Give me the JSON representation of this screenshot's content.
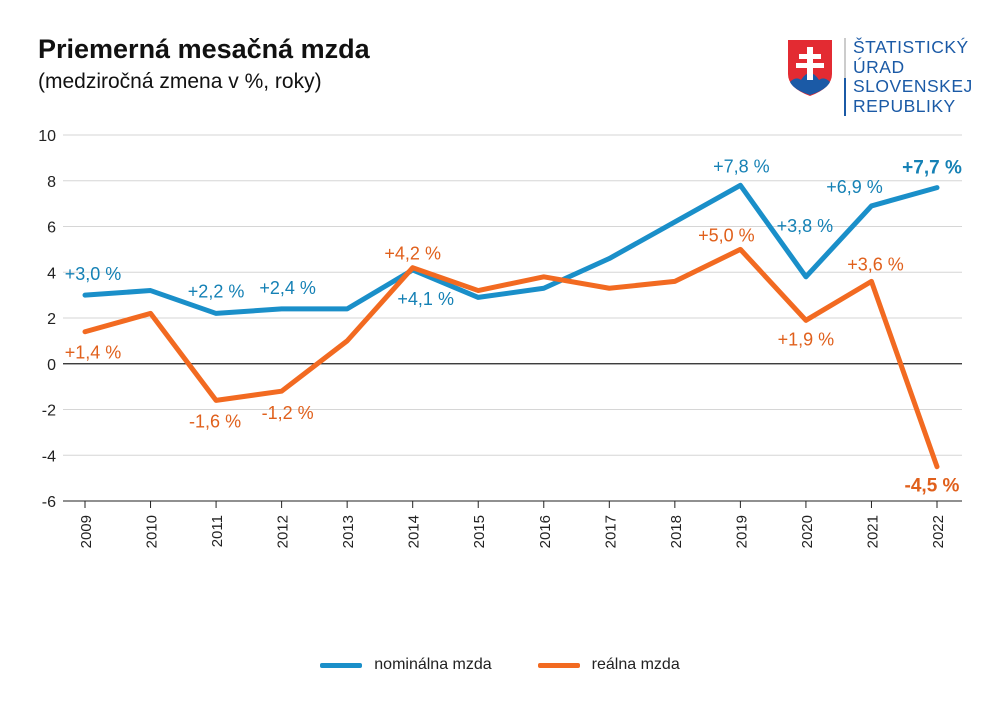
{
  "header": {
    "title": "Priemerná mesačná mzda",
    "subtitle": "(medziročná zmena v %, roky)"
  },
  "logo": {
    "lines": [
      "ŠTATISTICKÝ",
      "ÚRAD",
      "SLOVENSKEJ",
      "REPUBLIKY"
    ],
    "icon": "slovak-coat-of-arms-icon"
  },
  "chart_data": {
    "type": "line",
    "title": "Priemerná mesačná mzda",
    "subtitle": "(medziročná zmena v %, roky)",
    "x": [
      "2009",
      "2010",
      "2011",
      "2012",
      "2013",
      "2014",
      "2015",
      "2016",
      "2017",
      "2018",
      "2019",
      "2020",
      "2021",
      "2022"
    ],
    "ylim": [
      -6,
      10
    ],
    "yticks": [
      -6,
      -4,
      -2,
      0,
      2,
      4,
      6,
      8,
      10
    ],
    "grid": true,
    "legend_position": "bottom",
    "series": [
      {
        "name": "nominálna mzda",
        "color": "#1a8fc9",
        "values": [
          3.0,
          3.2,
          2.2,
          2.4,
          2.4,
          4.1,
          2.9,
          3.3,
          4.6,
          6.2,
          7.8,
          3.8,
          6.9,
          7.7
        ],
        "labels": [
          "+3,0 %",
          null,
          "+2,2 %",
          "+2,4 %",
          null,
          "+4,1 %",
          null,
          null,
          null,
          null,
          "+7,8 %",
          "+3,8 %",
          "+6,9 %",
          "+7,7 %"
        ]
      },
      {
        "name": "reálna mzda",
        "color": "#f26a21",
        "values": [
          1.4,
          2.2,
          -1.6,
          -1.2,
          1.0,
          4.2,
          3.2,
          3.8,
          3.3,
          3.6,
          5.0,
          1.9,
          3.6,
          -4.5
        ],
        "labels": [
          "+1,4 %",
          null,
          "-1,6 %",
          "-1,2 %",
          null,
          "+4,2 %",
          null,
          null,
          null,
          null,
          "+5,0 %",
          "+1,9 %",
          "+3,6 %",
          "-4,5 %"
        ]
      }
    ]
  }
}
